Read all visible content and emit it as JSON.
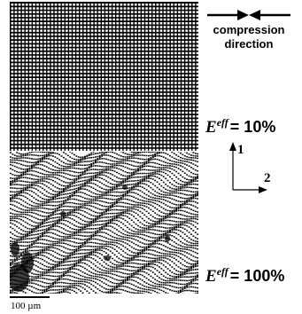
{
  "figure": {
    "compression_label_line1": "compression",
    "compression_label_line2": "direction",
    "strain_top": {
      "symbol": "E",
      "superscript": "eff",
      "value": "= 10%"
    },
    "strain_bottom": {
      "symbol": "E",
      "superscript": "eff",
      "value": "= 100%"
    },
    "axis_1_label": "1",
    "axis_2_label": "2",
    "scale_bar_label": "100 µm"
  }
}
